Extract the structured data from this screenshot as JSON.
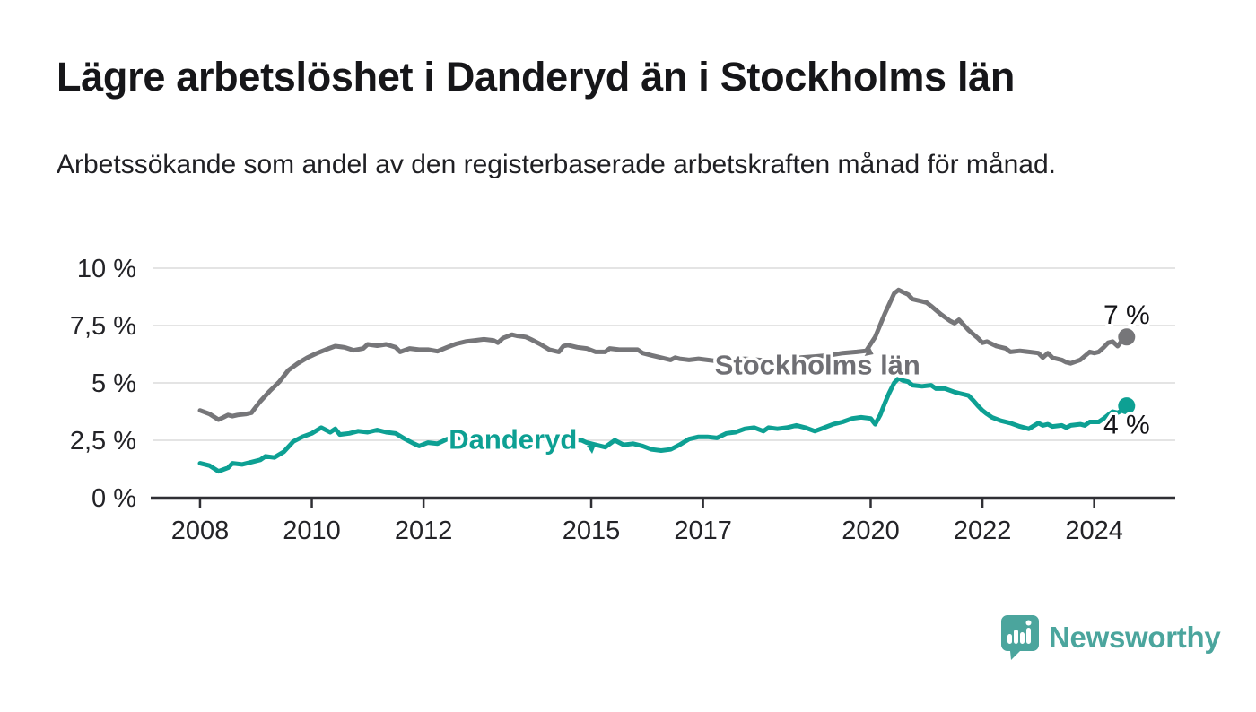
{
  "header": {
    "title": "Lägre arbetslöshet i Danderyd än i Stockholms län",
    "subtitle": "Arbetssökande som andel av den registerbaserade arbetskraften månad för månad."
  },
  "footer": {
    "brand": "Newsworthy",
    "logo_icon": "speech-bubble-bar-chart-icon",
    "brand_color": "#4ba59d"
  },
  "chart_data": {
    "type": "line",
    "title": "Lägre arbetslöshet i Danderyd än i Stockholms län",
    "subtitle": "Arbetssökande som andel av den registerbaserade arbetskraften månad för månad.",
    "unit": "%",
    "grid": true,
    "x_domain": [
      2007.15,
      2025.45
    ],
    "y_domain": [
      0,
      10
    ],
    "y_ticks": [
      {
        "value": 0,
        "label": "0 %"
      },
      {
        "value": 2.5,
        "label": "2,5 %"
      },
      {
        "value": 5,
        "label": "5 %"
      },
      {
        "value": 7.5,
        "label": "7,5 %"
      },
      {
        "value": 10,
        "label": "10 %"
      }
    ],
    "x_ticks": [
      {
        "value": 2008,
        "label": "2008"
      },
      {
        "value": 2010,
        "label": "2010"
      },
      {
        "value": 2012,
        "label": "2012"
      },
      {
        "value": 2015,
        "label": "2015"
      },
      {
        "value": 2017,
        "label": "2017"
      },
      {
        "value": 2020,
        "label": "2020"
      },
      {
        "value": 2022,
        "label": "2022"
      },
      {
        "value": 2024,
        "label": "2024"
      }
    ],
    "colors": {
      "grid": "#dcdcdc",
      "axis": "#2f2f34",
      "tick_label": "#232327",
      "value_label": "#141418"
    },
    "series": [
      {
        "name": "Stockholms län",
        "color": "#767679",
        "label_color": "#6f6f74",
        "end_label": "7 %",
        "end_label_position": "above",
        "points": [
          [
            2008.0,
            3.8
          ],
          [
            2008.17,
            3.65
          ],
          [
            2008.33,
            3.4
          ],
          [
            2008.42,
            3.5
          ],
          [
            2008.5,
            3.6
          ],
          [
            2008.58,
            3.55
          ],
          [
            2008.67,
            3.6
          ],
          [
            2008.83,
            3.65
          ],
          [
            2008.92,
            3.7
          ],
          [
            2009.0,
            3.95
          ],
          [
            2009.08,
            4.2
          ],
          [
            2009.25,
            4.65
          ],
          [
            2009.42,
            5.05
          ],
          [
            2009.58,
            5.55
          ],
          [
            2009.75,
            5.85
          ],
          [
            2009.92,
            6.1
          ],
          [
            2010.08,
            6.28
          ],
          [
            2010.25,
            6.45
          ],
          [
            2010.42,
            6.6
          ],
          [
            2010.58,
            6.55
          ],
          [
            2010.75,
            6.42
          ],
          [
            2010.92,
            6.5
          ],
          [
            2011.0,
            6.68
          ],
          [
            2011.17,
            6.62
          ],
          [
            2011.33,
            6.68
          ],
          [
            2011.5,
            6.55
          ],
          [
            2011.58,
            6.35
          ],
          [
            2011.75,
            6.5
          ],
          [
            2011.92,
            6.45
          ],
          [
            2012.08,
            6.45
          ],
          [
            2012.25,
            6.38
          ],
          [
            2012.42,
            6.55
          ],
          [
            2012.58,
            6.7
          ],
          [
            2012.75,
            6.8
          ],
          [
            2012.92,
            6.85
          ],
          [
            2013.08,
            6.9
          ],
          [
            2013.25,
            6.85
          ],
          [
            2013.33,
            6.75
          ],
          [
            2013.42,
            6.95
          ],
          [
            2013.58,
            7.1
          ],
          [
            2013.67,
            7.05
          ],
          [
            2013.83,
            7.0
          ],
          [
            2013.92,
            6.9
          ],
          [
            2014.08,
            6.7
          ],
          [
            2014.25,
            6.45
          ],
          [
            2014.42,
            6.35
          ],
          [
            2014.5,
            6.6
          ],
          [
            2014.58,
            6.65
          ],
          [
            2014.75,
            6.55
          ],
          [
            2014.92,
            6.5
          ],
          [
            2015.08,
            6.35
          ],
          [
            2015.25,
            6.35
          ],
          [
            2015.33,
            6.5
          ],
          [
            2015.5,
            6.45
          ],
          [
            2015.67,
            6.45
          ],
          [
            2015.83,
            6.45
          ],
          [
            2015.92,
            6.3
          ],
          [
            2016.08,
            6.2
          ],
          [
            2016.25,
            6.1
          ],
          [
            2016.42,
            6.0
          ],
          [
            2016.5,
            6.1
          ],
          [
            2016.58,
            6.05
          ],
          [
            2016.75,
            6.0
          ],
          [
            2016.92,
            6.05
          ],
          [
            2017.08,
            6.0
          ],
          [
            2017.25,
            5.95
          ],
          [
            2017.5,
            6.0
          ],
          [
            2017.75,
            6.05
          ],
          [
            2018.0,
            6.0
          ],
          [
            2018.25,
            5.95
          ],
          [
            2018.5,
            6.0
          ],
          [
            2018.75,
            6.1
          ],
          [
            2019.0,
            6.15
          ],
          [
            2019.25,
            6.2
          ],
          [
            2019.5,
            6.3
          ],
          [
            2019.75,
            6.35
          ],
          [
            2019.92,
            6.4
          ],
          [
            2020.08,
            7.0
          ],
          [
            2020.25,
            8.0
          ],
          [
            2020.42,
            8.9
          ],
          [
            2020.5,
            9.05
          ],
          [
            2020.58,
            8.95
          ],
          [
            2020.67,
            8.85
          ],
          [
            2020.75,
            8.65
          ],
          [
            2020.92,
            8.55
          ],
          [
            2021.0,
            8.5
          ],
          [
            2021.08,
            8.35
          ],
          [
            2021.25,
            8.0
          ],
          [
            2021.42,
            7.7
          ],
          [
            2021.5,
            7.6
          ],
          [
            2021.58,
            7.75
          ],
          [
            2021.75,
            7.3
          ],
          [
            2021.92,
            6.95
          ],
          [
            2022.0,
            6.75
          ],
          [
            2022.08,
            6.8
          ],
          [
            2022.25,
            6.6
          ],
          [
            2022.42,
            6.5
          ],
          [
            2022.5,
            6.35
          ],
          [
            2022.67,
            6.4
          ],
          [
            2022.83,
            6.35
          ],
          [
            2023.0,
            6.3
          ],
          [
            2023.08,
            6.1
          ],
          [
            2023.17,
            6.3
          ],
          [
            2023.25,
            6.1
          ],
          [
            2023.42,
            6.0
          ],
          [
            2023.5,
            5.9
          ],
          [
            2023.58,
            5.85
          ],
          [
            2023.75,
            6.0
          ],
          [
            2023.92,
            6.35
          ],
          [
            2024.0,
            6.3
          ],
          [
            2024.08,
            6.35
          ],
          [
            2024.17,
            6.55
          ],
          [
            2024.25,
            6.75
          ],
          [
            2024.33,
            6.8
          ],
          [
            2024.42,
            6.6
          ],
          [
            2024.5,
            6.85
          ],
          [
            2024.58,
            7.0
          ]
        ]
      },
      {
        "name": "Danderyd",
        "color": "#0da093",
        "label_color": "#0da093",
        "end_label": "4 %",
        "end_label_position": "below",
        "points": [
          [
            2008.0,
            1.5
          ],
          [
            2008.17,
            1.4
          ],
          [
            2008.33,
            1.15
          ],
          [
            2008.5,
            1.3
          ],
          [
            2008.58,
            1.5
          ],
          [
            2008.75,
            1.45
          ],
          [
            2008.92,
            1.55
          ],
          [
            2009.08,
            1.65
          ],
          [
            2009.17,
            1.8
          ],
          [
            2009.33,
            1.75
          ],
          [
            2009.5,
            2.0
          ],
          [
            2009.67,
            2.45
          ],
          [
            2009.83,
            2.65
          ],
          [
            2010.0,
            2.8
          ],
          [
            2010.17,
            3.05
          ],
          [
            2010.33,
            2.85
          ],
          [
            2010.42,
            3.0
          ],
          [
            2010.5,
            2.75
          ],
          [
            2010.67,
            2.8
          ],
          [
            2010.83,
            2.9
          ],
          [
            2011.0,
            2.85
          ],
          [
            2011.17,
            2.95
          ],
          [
            2011.33,
            2.85
          ],
          [
            2011.5,
            2.8
          ],
          [
            2011.67,
            2.55
          ],
          [
            2011.83,
            2.35
          ],
          [
            2011.92,
            2.25
          ],
          [
            2012.08,
            2.4
          ],
          [
            2012.25,
            2.35
          ],
          [
            2012.42,
            2.55
          ],
          [
            2012.58,
            2.6
          ],
          [
            2012.83,
            2.6
          ],
          [
            2013.08,
            2.65
          ],
          [
            2013.33,
            2.6
          ],
          [
            2013.58,
            2.65
          ],
          [
            2013.83,
            2.55
          ],
          [
            2014.08,
            2.6
          ],
          [
            2014.33,
            2.55
          ],
          [
            2014.58,
            2.55
          ],
          [
            2014.83,
            2.5
          ],
          [
            2014.92,
            2.4
          ],
          [
            2015.08,
            2.3
          ],
          [
            2015.25,
            2.2
          ],
          [
            2015.42,
            2.5
          ],
          [
            2015.58,
            2.3
          ],
          [
            2015.75,
            2.35
          ],
          [
            2015.92,
            2.25
          ],
          [
            2016.08,
            2.1
          ],
          [
            2016.25,
            2.05
          ],
          [
            2016.42,
            2.1
          ],
          [
            2016.58,
            2.3
          ],
          [
            2016.75,
            2.55
          ],
          [
            2016.92,
            2.65
          ],
          [
            2017.08,
            2.65
          ],
          [
            2017.25,
            2.6
          ],
          [
            2017.42,
            2.8
          ],
          [
            2017.58,
            2.85
          ],
          [
            2017.75,
            3.0
          ],
          [
            2017.92,
            3.05
          ],
          [
            2018.08,
            2.9
          ],
          [
            2018.17,
            3.05
          ],
          [
            2018.33,
            3.0
          ],
          [
            2018.5,
            3.05
          ],
          [
            2018.67,
            3.15
          ],
          [
            2018.83,
            3.05
          ],
          [
            2019.0,
            2.9
          ],
          [
            2019.17,
            3.05
          ],
          [
            2019.33,
            3.2
          ],
          [
            2019.5,
            3.3
          ],
          [
            2019.67,
            3.45
          ],
          [
            2019.83,
            3.5
          ],
          [
            2020.0,
            3.45
          ],
          [
            2020.08,
            3.2
          ],
          [
            2020.17,
            3.6
          ],
          [
            2020.25,
            4.1
          ],
          [
            2020.33,
            4.55
          ],
          [
            2020.42,
            5.0
          ],
          [
            2020.5,
            5.2
          ],
          [
            2020.58,
            5.1
          ],
          [
            2020.67,
            5.05
          ],
          [
            2020.75,
            4.9
          ],
          [
            2020.92,
            4.85
          ],
          [
            2021.08,
            4.9
          ],
          [
            2021.17,
            4.75
          ],
          [
            2021.33,
            4.75
          ],
          [
            2021.5,
            4.6
          ],
          [
            2021.58,
            4.55
          ],
          [
            2021.75,
            4.45
          ],
          [
            2021.83,
            4.25
          ],
          [
            2021.92,
            4.0
          ],
          [
            2022.0,
            3.8
          ],
          [
            2022.08,
            3.65
          ],
          [
            2022.17,
            3.5
          ],
          [
            2022.33,
            3.35
          ],
          [
            2022.5,
            3.25
          ],
          [
            2022.67,
            3.1
          ],
          [
            2022.83,
            3.0
          ],
          [
            2023.0,
            3.25
          ],
          [
            2023.08,
            3.15
          ],
          [
            2023.17,
            3.2
          ],
          [
            2023.25,
            3.1
          ],
          [
            2023.42,
            3.15
          ],
          [
            2023.5,
            3.05
          ],
          [
            2023.58,
            3.15
          ],
          [
            2023.75,
            3.2
          ],
          [
            2023.83,
            3.15
          ],
          [
            2023.92,
            3.3
          ],
          [
            2024.08,
            3.3
          ],
          [
            2024.17,
            3.45
          ],
          [
            2024.25,
            3.6
          ],
          [
            2024.33,
            3.75
          ],
          [
            2024.42,
            3.7
          ],
          [
            2024.5,
            3.8
          ],
          [
            2024.58,
            4.0
          ]
        ]
      }
    ],
    "series_labels": [
      {
        "text": "Stockholms län",
        "x": 2019.05,
        "y": 5.8,
        "series_index": 0
      },
      {
        "text": "Danderyd",
        "x": 2013.6,
        "y": 2.55,
        "series_index": 1
      }
    ],
    "label_arrows": [
      {
        "x": 2019.97,
        "y": 6.33,
        "dir": "up",
        "series_index": 0
      },
      {
        "x": 2015.0,
        "y": 2.11,
        "dir": "down",
        "series_index": 1
      }
    ],
    "legend_position": "inline-labels"
  }
}
